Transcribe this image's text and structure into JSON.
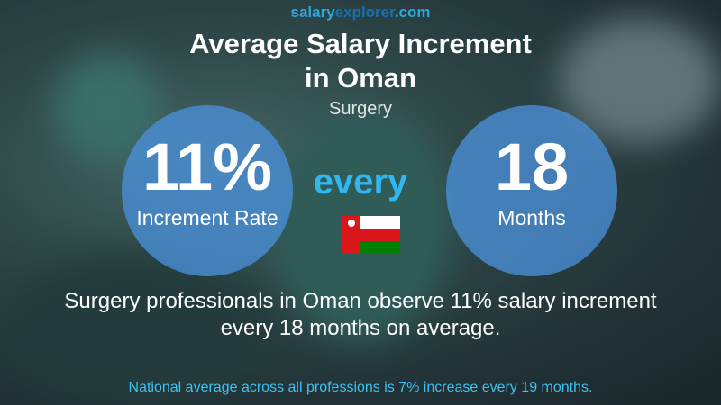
{
  "brand": [
    "salary",
    "explorer",
    ".com"
  ],
  "title_lines": [
    "Average Salary Increment",
    "in Oman"
  ],
  "subtitle": "Surgery",
  "left_circle": {
    "value": "11%",
    "label": "Increment Rate"
  },
  "connector": "every",
  "right_circle": {
    "value": "18",
    "label": "Months"
  },
  "summary_lines": [
    "Surgery professionals in Oman observe 11% salary increment",
    "every 18 months on average."
  ],
  "footer": "National average across all professions is 7% increase every 19 months."
}
